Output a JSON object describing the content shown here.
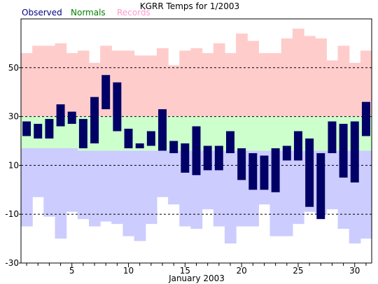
{
  "chart_data": {
    "type": "bar",
    "title": "KGRR Temps for 1/2003",
    "xlabel": "January 2003",
    "ylabel": "",
    "xlim": [
      0.5,
      31.5
    ],
    "ylim": [
      -30,
      70
    ],
    "yticks": [
      50,
      30,
      10,
      -10,
      -30
    ],
    "ytick_labels": [
      "50",
      "30",
      "10",
      "-10",
      "-30"
    ],
    "xticks": [
      5,
      10,
      15,
      20,
      25,
      30
    ],
    "xtick_labels": [
      "5",
      "10",
      "15",
      "20",
      "25",
      "30"
    ],
    "grid": "dashed horizontal lines at 50, 30, 10, -10",
    "legend_placement": "top-left",
    "legend": [
      "Observed",
      "Normals",
      "Records"
    ],
    "colors": {
      "observed": "#000066",
      "normals": "#ccffcc",
      "records": "#ffcccc",
      "record_low": "#ccccff",
      "legend_observed": "#000080",
      "legend_normals": "#008000",
      "legend_records": "#ff99cc"
    },
    "days": [
      1,
      2,
      3,
      4,
      5,
      6,
      7,
      8,
      9,
      10,
      11,
      12,
      13,
      14,
      15,
      16,
      17,
      18,
      19,
      20,
      21,
      22,
      23,
      24,
      25,
      26,
      27,
      28,
      29,
      30,
      31
    ],
    "observed_high": [
      28,
      27,
      29,
      35,
      32,
      29,
      38,
      47,
      44,
      25,
      19,
      24,
      33,
      20,
      19,
      26,
      18,
      18,
      24,
      17,
      15,
      14,
      17,
      18,
      24,
      21,
      15,
      28,
      27,
      28,
      36
    ],
    "observed_low": [
      22,
      21,
      21,
      26,
      27,
      17,
      19,
      33,
      24,
      17,
      17,
      18,
      16,
      15,
      7,
      6,
      8,
      8,
      15,
      4,
      0,
      0,
      -1,
      12,
      12,
      -7,
      -12,
      15,
      5,
      3,
      22
    ],
    "normal_high": [
      30,
      30,
      30,
      30,
      30,
      30,
      30,
      30,
      30,
      30,
      30,
      30,
      30,
      30,
      30,
      30,
      30,
      30,
      30,
      30,
      30,
      30,
      30,
      30,
      30,
      30,
      30,
      30,
      30,
      30,
      30
    ],
    "normal_low": [
      17,
      17,
      17,
      17,
      17,
      16,
      16,
      16,
      16,
      16,
      16,
      16,
      16,
      16,
      16,
      16,
      16,
      16,
      16,
      16,
      16,
      16,
      16,
      16,
      16,
      16,
      16,
      16,
      16,
      16,
      16
    ],
    "record_high": [
      56,
      59,
      59,
      60,
      56,
      57,
      52,
      59,
      57,
      57,
      55,
      55,
      58,
      51,
      57,
      58,
      56,
      60,
      56,
      64,
      61,
      56,
      56,
      62,
      66,
      63,
      62,
      53,
      59,
      52,
      57
    ],
    "record_low": [
      -15,
      -3,
      -11,
      -20,
      -9,
      -12,
      -15,
      -13,
      -14,
      -19,
      -21,
      -14,
      -3,
      -6,
      -15,
      -16,
      -8,
      -15,
      -22,
      -15,
      -15,
      -6,
      -19,
      -19,
      -14,
      -9,
      -10,
      -8,
      -16,
      -22,
      -20
    ]
  }
}
